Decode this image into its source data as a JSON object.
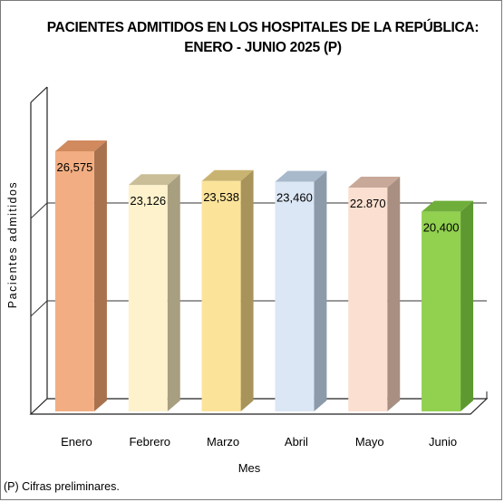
{
  "chart_data": {
    "type": "bar",
    "title_lines": [
      "PACIENTES ADMITIDOS EN LOS HOSPITALES DE LA REPÚBLICA:",
      "ENERO - JUNIO 2025 (P)"
    ],
    "xlabel": "Mes",
    "ylabel": "Pacientes  admitidos",
    "categories": [
      "Enero",
      "Febrero",
      "Marzo",
      "Abril",
      "Mayo",
      "Junio"
    ],
    "values": [
      26575,
      23126,
      23538,
      23460,
      22870,
      20400
    ],
    "data_labels": [
      "26,575",
      "23,126",
      "23,538",
      "23,460",
      "22.870",
      "20,400"
    ],
    "ylim": [
      0,
      30000
    ],
    "grid": true,
    "legend": "none",
    "colors": [
      {
        "front": "#F2AE82",
        "side": "#A8724E",
        "top": "#D08A5E"
      },
      {
        "front": "#FDF2CC",
        "side": "#A89E80",
        "top": "#C9BE98"
      },
      {
        "front": "#FBE39A",
        "side": "#A8935A",
        "top": "#C9B370"
      },
      {
        "front": "#DCE7F5",
        "side": "#8C9AAA",
        "top": "#A9B9CC"
      },
      {
        "front": "#FBDFD0",
        "side": "#A88F82",
        "top": "#C8A898"
      },
      {
        "front": "#92D050",
        "side": "#5E9830",
        "top": "#6FAE3A"
      }
    ]
  },
  "footnote": "(P) Cifras  preliminares."
}
